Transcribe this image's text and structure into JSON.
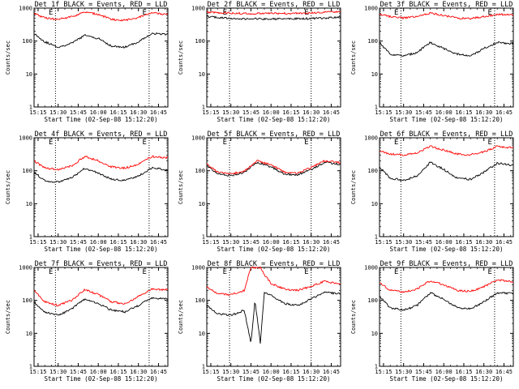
{
  "x_axis_label": "Start Time (02-Sep-08 15:12:20)",
  "y_axis_label": "Counts/sec",
  "x_tick_labels": [
    "15:15",
    "15:30",
    "15:45",
    "16:00",
    "16:15",
    "16:30",
    "16:45"
  ],
  "y_tick_labels": [
    "1",
    "10",
    "100",
    "1000"
  ],
  "boundary_markers": [
    "E",
    "E"
  ],
  "colors": {
    "events": "#000000",
    "lld": "#ff0000",
    "boundary": "#000000"
  },
  "chart_data": [
    {
      "type": "line",
      "title": "Det 1f BLACK = Events, RED = LLD",
      "xlabel": "Start Time (02-Sep-08 15:12:20)",
      "ylabel": "Counts/sec",
      "x_unit": "HH:MM",
      "xlim": [
        "15:12",
        "16:52"
      ],
      "ylim": [
        1,
        1000
      ],
      "yscale": "log",
      "x": [
        "15:12",
        "15:20",
        "15:30",
        "15:40",
        "15:50",
        "16:00",
        "16:10",
        "16:20",
        "16:30",
        "16:40",
        "16:50"
      ],
      "series": [
        {
          "name": "Events",
          "values": [
            170,
            95,
            65,
            85,
            150,
            120,
            70,
            65,
            95,
            170,
            160
          ]
        },
        {
          "name": "LLD",
          "values": [
            700,
            500,
            450,
            550,
            750,
            650,
            450,
            430,
            520,
            720,
            650
          ]
        }
      ],
      "boundaries": [
        "15:28",
        "16:38"
      ]
    },
    {
      "type": "line",
      "title": "Det 2f BLACK = Events, RED = LLD",
      "xlabel": "Start Time (02-Sep-08 15:12:20)",
      "ylabel": "Counts/sec",
      "x_unit": "HH:MM",
      "xlim": [
        "15:12",
        "16:52"
      ],
      "ylim": [
        1,
        1000
      ],
      "yscale": "log",
      "x": [
        "15:12",
        "15:30",
        "15:50",
        "16:10",
        "16:30",
        "16:50"
      ],
      "series": [
        {
          "name": "Events",
          "values": [
            550,
            480,
            470,
            470,
            480,
            520
          ]
        },
        {
          "name": "LLD",
          "values": [
            750,
            700,
            680,
            690,
            710,
            780
          ]
        }
      ],
      "boundaries": [
        "15:29",
        "16:30"
      ]
    },
    {
      "type": "line",
      "title": "Det 3f BLACK = Events, RED = LLD",
      "xlabel": "Start Time (02-Sep-08 15:12:20)",
      "ylabel": "Counts/sec",
      "x_unit": "HH:MM",
      "xlim": [
        "15:12",
        "16:52"
      ],
      "ylim": [
        1,
        1000
      ],
      "yscale": "log",
      "x": [
        "15:12",
        "15:20",
        "15:30",
        "15:40",
        "15:50",
        "16:00",
        "16:10",
        "16:20",
        "16:30",
        "16:40",
        "16:50"
      ],
      "series": [
        {
          "name": "Events",
          "values": [
            90,
            40,
            35,
            45,
            90,
            60,
            40,
            35,
            60,
            90,
            85
          ]
        },
        {
          "name": "LLD",
          "values": [
            650,
            550,
            500,
            550,
            700,
            600,
            500,
            480,
            550,
            650,
            620
          ]
        }
      ],
      "boundaries": [
        "15:28",
        "16:38"
      ]
    },
    {
      "type": "line",
      "title": "Det 4f BLACK = Events, RED = LLD",
      "xlabel": "Start Time (02-Sep-08 15:12:20)",
      "ylabel": "Counts/sec",
      "x_unit": "HH:MM",
      "xlim": [
        "15:12",
        "16:52"
      ],
      "ylim": [
        1,
        1000
      ],
      "yscale": "log",
      "x": [
        "15:12",
        "15:20",
        "15:30",
        "15:40",
        "15:50",
        "16:00",
        "16:10",
        "16:20",
        "16:30",
        "16:40",
        "16:50"
      ],
      "series": [
        {
          "name": "Events",
          "values": [
            90,
            50,
            45,
            60,
            120,
            85,
            55,
            50,
            70,
            120,
            110
          ]
        },
        {
          "name": "LLD",
          "values": [
            200,
            120,
            110,
            140,
            270,
            200,
            130,
            120,
            160,
            270,
            250
          ]
        }
      ],
      "boundaries": [
        "15:28",
        "16:38"
      ]
    },
    {
      "type": "line",
      "title": "Det 5f BLACK = Events, RED = LLD",
      "xlabel": "Start Time (02-Sep-08 15:12:20)",
      "ylabel": "Counts/sec",
      "x_unit": "HH:MM",
      "xlim": [
        "15:12",
        "16:52"
      ],
      "ylim": [
        1,
        1000
      ],
      "yscale": "log",
      "x": [
        "15:12",
        "15:20",
        "15:30",
        "15:40",
        "15:50",
        "16:00",
        "16:10",
        "16:20",
        "16:30",
        "16:40",
        "16:50"
      ],
      "series": [
        {
          "name": "Events",
          "values": [
            140,
            80,
            70,
            90,
            180,
            130,
            80,
            75,
            110,
            180,
            160
          ]
        },
        {
          "name": "LLD",
          "values": [
            160,
            90,
            80,
            100,
            200,
            150,
            90,
            85,
            125,
            200,
            180
          ]
        }
      ],
      "boundaries": [
        "15:29",
        "16:30"
      ]
    },
    {
      "type": "line",
      "title": "Det 6f BLACK = Events, RED = LLD",
      "xlabel": "Start Time (02-Sep-08 15:12:20)",
      "ylabel": "Counts/sec",
      "x_unit": "HH:MM",
      "xlim": [
        "15:12",
        "16:52"
      ],
      "ylim": [
        1,
        1000
      ],
      "yscale": "log",
      "x": [
        "15:12",
        "15:20",
        "15:30",
        "15:40",
        "15:50",
        "16:00",
        "16:10",
        "16:20",
        "16:30",
        "16:40",
        "16:50"
      ],
      "series": [
        {
          "name": "Events",
          "values": [
            130,
            60,
            50,
            70,
            180,
            110,
            60,
            55,
            90,
            170,
            150
          ]
        },
        {
          "name": "LLD",
          "values": [
            400,
            320,
            300,
            350,
            550,
            420,
            320,
            300,
            370,
            550,
            500
          ]
        }
      ],
      "boundaries": [
        "15:28",
        "16:38"
      ]
    },
    {
      "type": "line",
      "title": "Det 7f BLACK = Events, RED = LLD",
      "xlabel": "Start Time (02-Sep-08 15:12:20)",
      "ylabel": "Counts/sec",
      "x_unit": "HH:MM",
      "xlim": [
        "15:12",
        "16:52"
      ],
      "ylim": [
        1,
        1000
      ],
      "yscale": "log",
      "x": [
        "15:12",
        "15:20",
        "15:30",
        "15:40",
        "15:50",
        "16:00",
        "16:10",
        "16:20",
        "16:30",
        "16:40",
        "16:50"
      ],
      "series": [
        {
          "name": "Events",
          "values": [
            90,
            45,
            35,
            55,
            110,
            80,
            50,
            45,
            70,
            120,
            110
          ]
        },
        {
          "name": "LLD",
          "values": [
            200,
            90,
            70,
            100,
            210,
            150,
            90,
            80,
            130,
            220,
            210
          ]
        }
      ],
      "boundaries": [
        "15:28",
        "16:38"
      ]
    },
    {
      "type": "line",
      "title": "Det 8f BLACK = Events, RED = LLD",
      "xlabel": "Start Time (02-Sep-08 15:12:20)",
      "ylabel": "Counts/sec",
      "x_unit": "HH:MM",
      "xlim": [
        "15:12",
        "16:52"
      ],
      "ylim": [
        1,
        1000
      ],
      "yscale": "log",
      "x": [
        "15:12",
        "15:20",
        "15:30",
        "15:40",
        "15:45",
        "15:48",
        "15:52",
        "15:55",
        "16:00",
        "16:10",
        "16:20",
        "16:30",
        "16:40",
        "16:50"
      ],
      "series": [
        {
          "name": "Events",
          "values": [
            70,
            40,
            35,
            50,
            5,
            100,
            5,
            180,
            140,
            80,
            70,
            110,
            180,
            160
          ]
        },
        {
          "name": "LLD",
          "values": [
            250,
            160,
            150,
            200,
            1000,
            1000,
            1000,
            600,
            330,
            220,
            200,
            270,
            380,
            320
          ]
        }
      ],
      "boundaries": [
        "15:29",
        "16:30"
      ]
    },
    {
      "type": "line",
      "title": "Det 9f BLACK = Events, RED = LLD",
      "xlabel": "Start Time (02-Sep-08 15:12:20)",
      "ylabel": "Counts/sec",
      "x_unit": "HH:MM",
      "xlim": [
        "15:12",
        "16:52"
      ],
      "ylim": [
        1,
        1000
      ],
      "yscale": "log",
      "x": [
        "15:12",
        "15:20",
        "15:30",
        "15:40",
        "15:50",
        "16:00",
        "16:10",
        "16:20",
        "16:30",
        "16:40",
        "16:50"
      ],
      "series": [
        {
          "name": "Events",
          "values": [
            130,
            60,
            50,
            70,
            170,
            110,
            60,
            55,
            90,
            170,
            160
          ]
        },
        {
          "name": "LLD",
          "values": [
            350,
            200,
            180,
            220,
            400,
            300,
            200,
            190,
            260,
            420,
            380
          ]
        }
      ],
      "boundaries": [
        "15:28",
        "16:38"
      ]
    }
  ]
}
